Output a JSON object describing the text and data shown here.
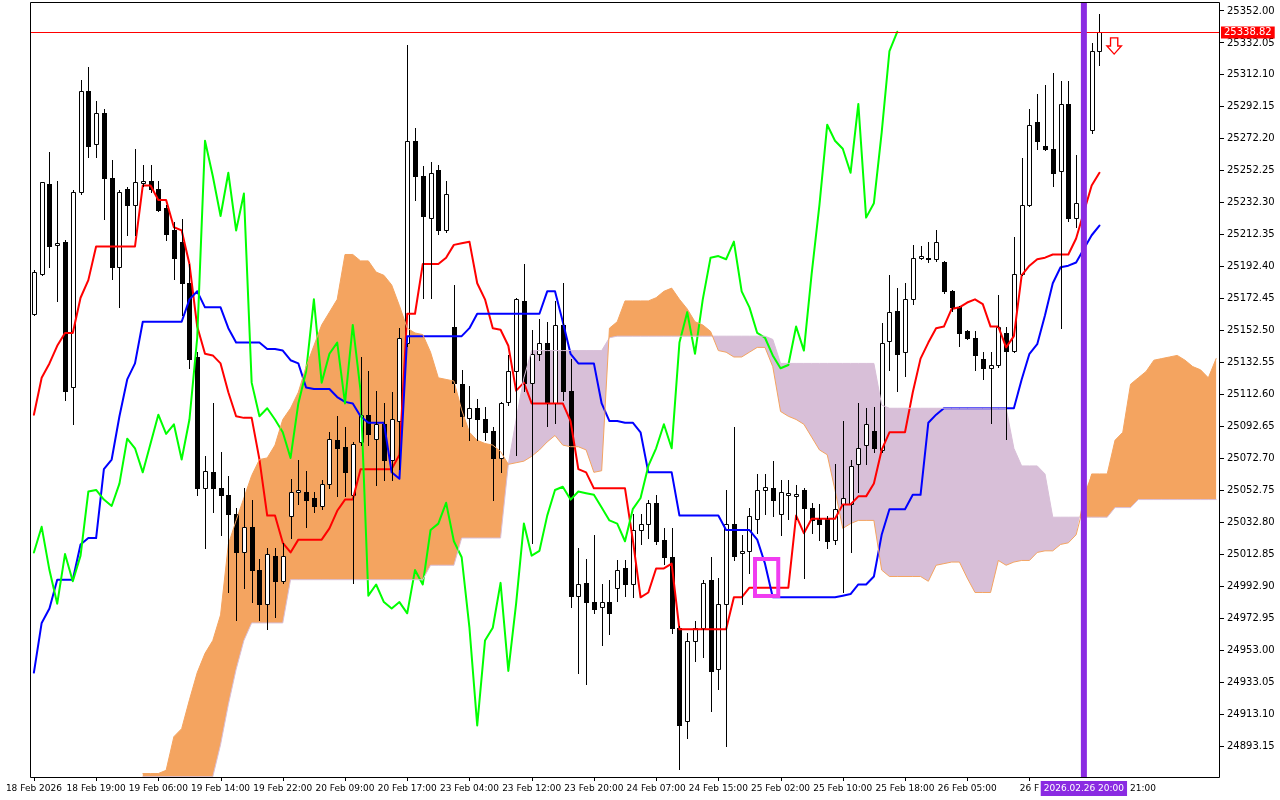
{
  "chart_data": {
    "type": "candlestick",
    "categories": [
      "18 Feb 2026",
      null,
      null,
      null,
      null,
      null,
      null,
      null,
      "18 Feb 19:00",
      null,
      null,
      null,
      null,
      null,
      null,
      null,
      "19 Feb 06:00",
      null,
      null,
      null,
      null,
      null,
      null,
      null,
      "19 Feb 14:00",
      null,
      null,
      null,
      null,
      null,
      null,
      null,
      "19 Feb 22:00",
      null,
      null,
      null,
      null,
      null,
      null,
      null,
      "20 Feb 09:00",
      null,
      null,
      null,
      null,
      null,
      null,
      null,
      "20 Feb 17:00",
      null,
      null,
      null,
      null,
      null,
      null,
      null,
      "23 Feb 04:00",
      null,
      null,
      null,
      null,
      null,
      null,
      null,
      "23 Feb 12:00",
      null,
      null,
      null,
      null,
      null,
      null,
      null,
      "23 Feb 20:00",
      null,
      null,
      null,
      null,
      null,
      null,
      null,
      "24 Feb 07:00",
      null,
      null,
      null,
      null,
      null,
      null,
      null,
      "24 Feb 15:00",
      null,
      null,
      null,
      null,
      null,
      null,
      null,
      "25 Feb 02:00",
      null,
      null,
      null,
      null,
      null,
      null,
      null,
      "25 Feb 10:00",
      null,
      null,
      null,
      null,
      null,
      null,
      null,
      "25 Feb 18:00",
      null,
      null,
      null,
      null,
      null,
      null,
      null,
      "26 Feb 05:00",
      null,
      null,
      null,
      null,
      null,
      null,
      null,
      "26 F",
      null,
      null,
      null,
      null,
      null,
      null,
      "2026.02.26 20:00",
      null,
      null,
      null,
      null,
      null,
      null,
      null,
      null,
      null,
      null,
      null,
      null,
      null,
      null,
      null,
      null,
      null
    ],
    "ohlc": [
      [
        25163,
        25190,
        25162,
        25189
      ],
      [
        25188,
        25245,
        25187,
        25245
      ],
      [
        25244,
        25264,
        25192,
        25205
      ],
      [
        25206,
        25246,
        25171,
        25207
      ],
      [
        25208,
        25209,
        25109,
        25115
      ],
      [
        25117,
        25240,
        25094,
        25239
      ],
      [
        25239,
        25309,
        25238,
        25302
      ],
      [
        25302,
        25317,
        25261,
        25268
      ],
      [
        25269,
        25296,
        25261,
        25288
      ],
      [
        25288,
        25291,
        25222,
        25248
      ],
      [
        25248,
        25259,
        25185,
        25192
      ],
      [
        25192,
        25240,
        25167,
        25239
      ],
      [
        25241,
        25242,
        25212,
        25231
      ],
      [
        25231,
        25266,
        25212,
        25245
      ],
      [
        25245,
        25256,
        25243,
        25246
      ],
      [
        25246,
        25256,
        25239,
        25241
      ],
      [
        25241,
        25246,
        25227,
        25228
      ],
      [
        25229,
        25231,
        25209,
        25213
      ],
      [
        25215,
        25220,
        25185,
        25198
      ],
      [
        25208,
        25222,
        25162,
        25182
      ],
      [
        25182,
        25194,
        25129,
        25135
      ],
      [
        25136,
        25139,
        25050,
        25054
      ],
      [
        25054,
        25074,
        25017,
        25065
      ],
      [
        25064,
        25107,
        25039,
        25054
      ],
      [
        25054,
        25077,
        25025,
        25050
      ],
      [
        25050,
        25062,
        24989,
        25038
      ],
      [
        25038,
        25042,
        24972,
        25014
      ],
      [
        25014,
        25054,
        24992,
        25030
      ],
      [
        25030,
        25047,
        24983,
        25003
      ],
      [
        25003,
        25010,
        24972,
        24982
      ],
      [
        24982,
        25017,
        24966,
        25013
      ],
      [
        25012,
        25017,
        24974,
        24996
      ],
      [
        24996,
        25020,
        24995,
        25012
      ],
      [
        25037,
        25060,
        25023,
        25052
      ],
      [
        25052,
        25072,
        25044,
        25053
      ],
      [
        25052,
        25065,
        25030,
        25047
      ],
      [
        25048,
        25052,
        25039,
        25043
      ],
      [
        25043,
        25059,
        25041,
        25057
      ],
      [
        25057,
        25089,
        25054,
        25085
      ],
      [
        25084,
        25099,
        25049,
        25079
      ],
      [
        25080,
        25092,
        25049,
        25064
      ],
      [
        25050,
        25083,
        24995,
        25082
      ],
      [
        25083,
        25136,
        25081,
        25100
      ],
      [
        25100,
        25127,
        25081,
        25088
      ],
      [
        25085,
        25115,
        25056,
        25094
      ],
      [
        25094,
        25107,
        25059,
        25072
      ],
      [
        25072,
        25114,
        25059,
        25097
      ],
      [
        25096,
        25154,
        25066,
        25148
      ],
      [
        25145,
        25331,
        25143,
        25271
      ],
      [
        25271,
        25279,
        25234,
        25249
      ],
      [
        25249,
        25255,
        25173,
        25224
      ],
      [
        25223,
        25258,
        25173,
        25251
      ],
      [
        25253,
        25256,
        25213,
        25215
      ],
      [
        25215,
        25246,
        25214,
        25238
      ],
      [
        25155,
        25181,
        25114,
        25120
      ],
      [
        25119,
        25128,
        25093,
        25099
      ],
      [
        25098,
        25118,
        25084,
        25104
      ],
      [
        25104,
        25110,
        25084,
        25097
      ],
      [
        25097,
        25105,
        25084,
        25089
      ],
      [
        25090,
        25092,
        25047,
        25073
      ],
      [
        25073,
        25108,
        25064,
        25107
      ],
      [
        25108,
        25137,
        25106,
        25127
      ],
      [
        25127,
        25173,
        25075,
        25172
      ],
      [
        25171,
        25194,
        25115,
        25120
      ],
      [
        25120,
        25153,
        25020,
        25138
      ],
      [
        25138,
        25160,
        25134,
        25145
      ],
      [
        25145,
        25158,
        25093,
        25107
      ],
      [
        25107,
        25171,
        25095,
        25156
      ],
      [
        25156,
        25182,
        25109,
        25115
      ],
      [
        25115,
        25135,
        24980,
        24987
      ],
      [
        24987,
        25017,
        24939,
        24994
      ],
      [
        24995,
        25010,
        24932,
        24983
      ],
      [
        24983,
        25025,
        24976,
        24979
      ],
      [
        24980,
        24994,
        24956,
        24983
      ],
      [
        24983,
        24997,
        24963,
        24976
      ],
      [
        24992,
        25009,
        24984,
        25003
      ],
      [
        25004,
        25009,
        24987,
        24994
      ],
      [
        24994,
        25038,
        24986,
        25028
      ],
      [
        25028,
        25038,
        25019,
        25032
      ],
      [
        25032,
        25047,
        25023,
        25045
      ],
      [
        25045,
        25050,
        25019,
        25021
      ],
      [
        25022,
        25029,
        25007,
        25011
      ],
      [
        25011,
        25029,
        24964,
        24967
      ],
      [
        24967,
        24968,
        24879,
        24906
      ],
      [
        24909,
        24964,
        24898,
        24959
      ],
      [
        24959,
        24971,
        24946,
        24967
      ],
      [
        24967,
        24997,
        24949,
        24995
      ],
      [
        24997,
        25011,
        24915,
        24940
      ],
      [
        24941,
        24998,
        24929,
        24982
      ],
      [
        24982,
        25053,
        24893,
        25032
      ],
      [
        25032,
        25092,
        25009,
        25012
      ],
      [
        25014,
        25025,
        24982,
        25015
      ],
      [
        25015,
        25042,
        25001,
        25037
      ],
      [
        25035,
        25063,
        25026,
        25053
      ],
      [
        25053,
        25063,
        25038,
        25055
      ],
      [
        25054,
        25071,
        25037,
        25047
      ],
      [
        25038,
        25059,
        25025,
        25052
      ],
      [
        25050,
        25059,
        25035,
        25051
      ],
      [
        25050,
        25056,
        25035,
        25050
      ],
      [
        25053,
        25054,
        24998,
        25042
      ],
      [
        25042,
        25045,
        25026,
        25034
      ],
      [
        25035,
        25044,
        25022,
        25032
      ],
      [
        25035,
        25037,
        25017,
        25021
      ],
      [
        25022,
        25069,
        25019,
        25041
      ],
      [
        25044,
        25096,
        24989,
        25048
      ],
      [
        25044,
        25072,
        25014,
        25068
      ],
      [
        25069,
        25107,
        25052,
        25079
      ],
      [
        25081,
        25104,
        25069,
        25094
      ],
      [
        25090,
        25105,
        25077,
        25079
      ],
      [
        25078,
        25157,
        25077,
        25145
      ],
      [
        25146,
        25187,
        25128,
        25164
      ],
      [
        25165,
        25179,
        25115,
        25138
      ],
      [
        25139,
        25182,
        25124,
        25172
      ],
      [
        25172,
        25206,
        25169,
        25198
      ],
      [
        25198,
        25205,
        25197,
        25199
      ],
      [
        25198,
        25208,
        25195,
        25197
      ],
      [
        25197,
        25215,
        25196,
        25208
      ],
      [
        25195,
        25196,
        25176,
        25177
      ],
      [
        25177,
        25178,
        25165,
        25167
      ],
      [
        25167,
        25168,
        25143,
        25151
      ],
      [
        25152,
        25153,
        25147,
        25148
      ],
      [
        25148,
        25152,
        25128,
        25137
      ],
      [
        25135,
        25139,
        25122,
        25129
      ],
      [
        25129,
        25139,
        25095,
        25131
      ],
      [
        25131,
        25175,
        25130,
        25155
      ],
      [
        25151,
        25155,
        25085,
        25140
      ],
      [
        25140,
        25211,
        25139,
        25188
      ],
      [
        25188,
        25260,
        25187,
        25231
      ],
      [
        25231,
        25291,
        25230,
        25281
      ],
      [
        25283,
        25300,
        25266,
        25271
      ],
      [
        25268,
        25306,
        25265,
        25266
      ],
      [
        25266,
        25313,
        25243,
        25251
      ],
      [
        25252,
        25308,
        25154,
        25294
      ],
      [
        25294,
        25308,
        25221,
        25223
      ],
      [
        25223,
        25262,
        25217,
        25232
      ],
      null,
      [
        25278,
        25332,
        25276,
        25327
      ],
      [
        25327,
        25350,
        25318,
        25338.82
      ],
      null,
      null,
      null,
      null,
      null,
      null,
      null,
      null,
      null,
      null,
      null,
      null,
      null,
      null,
      null
    ],
    "series": [
      {
        "type": "line",
        "color": "#f4a460",
        "values": [
          null,
          null,
          null,
          null,
          null,
          null,
          null,
          null,
          null,
          null,
          null,
          null,
          null,
          null,
          24876,
          24876,
          24876,
          24878,
          24899,
          24904,
          24922,
          24939,
          24951,
          24959,
          24975,
          25019,
          25034,
          25048,
          25062,
          25072,
          25073,
          25081,
          25097,
          25104,
          25114,
          25130,
          25143,
          25156,
          25164,
          25172,
          25200,
          25200,
          25196,
          25196,
          25189,
          25187,
          25181,
          25168,
          25154,
          25151,
          25150,
          25139,
          25123,
          25122,
          25121,
          25103,
          25089,
          25084,
          25082,
          25081,
          25077,
          25069,
          25070,
          25071,
          25074,
          25078,
          25083,
          25087,
          25081,
          25080,
          25080,
          25078,
          25064,
          25065,
          25154,
          25158,
          25171,
          25171,
          25171,
          25171,
          25173,
          25177,
          25179,
          25172,
          25166,
          25158,
          25156,
          25152,
          25140,
          25139,
          25136,
          25136,
          25139,
          25142,
          25142,
          25130,
          25102,
          25099,
          25097,
          25094,
          25086,
          25078,
          25075,
          25053,
          25029,
          25032,
          25034,
          25034,
          25034,
          25003,
          24999,
          24999,
          24999,
          24999,
          24999,
          24996,
          25006,
          25007,
          25008,
          25008,
          24998,
          24989,
          24989,
          24989,
          25009,
          25006,
          25008,
          25009,
          25009,
          25014,
          25015,
          25015,
          25019,
          25020,
          25025,
          null,
          25063,
          25063,
          25063,
          25084,
          25089,
          25119,
          25123,
          25127,
          25134,
          25135,
          25136,
          25137,
          25134,
          25130,
          25128,
          25123,
          25135
        ],
        "lower": [
          null,
          null,
          null,
          null,
          null,
          null,
          null,
          null,
          null,
          null,
          null,
          null,
          null,
          null,
          24874,
          24874,
          24874,
          24874,
          24874,
          24874,
          24874,
          24874,
          24874,
          24874,
          24894,
          24919,
          24941,
          24959,
          24970,
          24970,
          24970,
          24970,
          24970,
          24997,
          24997,
          24997,
          24997,
          24997,
          24997,
          24997,
          24997,
          24997,
          24997,
          24997,
          24997,
          24997,
          24997,
          24997,
          24997,
          24997,
          24997,
          25006,
          25006,
          25006,
          25006,
          25023,
          25023,
          25023,
          25023,
          25023,
          25023,
          25069,
          null,
          null,
          null,
          null,
          null,
          null,
          null,
          null,
          null,
          null,
          null,
          null,
          25148,
          25149,
          25149,
          25149,
          25149,
          25149,
          25149,
          25149,
          25149,
          25149,
          25149,
          25149,
          25149,
          25149,
          null,
          null,
          null,
          null,
          null,
          null,
          null,
          null,
          null,
          null,
          null,
          null,
          null,
          null,
          null,
          null,
          null,
          null,
          null,
          null,
          null,
          null,
          null,
          null,
          null,
          null,
          null,
          null,
          null,
          null,
          null,
          null,
          null,
          null,
          null,
          null,
          null,
          null,
          null,
          null,
          null,
          null,
          null,
          null,
          null,
          null,
          null,
          25036,
          25036,
          25036,
          25036,
          25042,
          25042,
          25042,
          25047,
          25047,
          25047,
          25047,
          25047,
          25047,
          25047,
          25047,
          25047,
          25047,
          25047
        ],
        "upper": [
          null,
          null,
          null,
          null,
          null,
          null,
          null,
          null,
          null,
          null,
          null,
          null,
          null,
          null,
          24876,
          24876,
          24876,
          24878,
          24899,
          24904,
          24922,
          24939,
          24951,
          24959,
          24975,
          25019,
          25034,
          25048,
          25062,
          25072,
          25073,
          25081,
          25097,
          25104,
          25114,
          25130,
          25143,
          25156,
          25164,
          25172,
          25200,
          25200,
          25196,
          25196,
          25189,
          25187,
          25181,
          25168,
          25154,
          25151,
          25150,
          25139,
          25123,
          25122,
          25121,
          25103,
          25089,
          25084,
          25082,
          25081,
          25077,
          25069,
          null,
          null,
          null,
          null,
          null,
          null,
          null,
          null,
          null,
          null,
          null,
          null,
          25154,
          25158,
          25171,
          25171,
          25171,
          25171,
          25173,
          25177,
          25179,
          25172,
          25166,
          25158,
          25156,
          25152,
          null,
          null,
          null,
          null,
          null,
          null,
          null,
          null,
          null,
          null,
          null,
          null,
          null,
          null,
          null,
          null,
          null,
          null,
          null,
          null,
          null,
          null,
          null,
          null,
          null,
          null,
          null,
          null,
          null,
          null,
          null,
          null,
          null,
          null,
          null,
          null,
          null,
          null,
          null,
          null,
          null,
          null,
          null,
          null,
          null,
          null,
          null,
          25050,
          25063,
          25063,
          25063,
          25084,
          25089,
          25119,
          25123,
          25127,
          25134,
          25135,
          25136,
          25137,
          25134,
          25130,
          25128,
          25123,
          25135
        ]
      },
      {
        "type": "line",
        "color": "#d8bfd8",
        "values": [
          null,
          null,
          null,
          null,
          null,
          null,
          null,
          null,
          null,
          null,
          null,
          null,
          null,
          null,
          24874,
          24874,
          24874,
          24874,
          24874,
          24874,
          24874,
          24874,
          24874,
          24874,
          24894,
          24919,
          24941,
          24959,
          24970,
          24970,
          24970,
          24970,
          24970,
          24997,
          24997,
          24997,
          24997,
          24997,
          24997,
          24997,
          24997,
          24997,
          24997,
          24997,
          24997,
          24997,
          24997,
          24997,
          24997,
          24997,
          24997,
          25006,
          25006,
          25006,
          25006,
          25023,
          25023,
          25023,
          25023,
          25023,
          25023,
          25069,
          25097,
          25123,
          25140,
          25140,
          25140,
          25140,
          25140,
          25140,
          25140,
          25140,
          25140,
          25140,
          25148,
          25149,
          25149,
          25149,
          25149,
          25149,
          25149,
          25149,
          25149,
          25149,
          25149,
          25149,
          25149,
          25149,
          25149,
          25149,
          25149,
          25149,
          25149,
          25149,
          25149,
          25147,
          25132,
          25132,
          25132,
          25132,
          25132,
          25132,
          25132,
          25132,
          25132,
          25132,
          25132,
          25132,
          25132,
          25106,
          25104,
          25104,
          25104,
          25104,
          25104,
          25104,
          25104,
          25104,
          25104,
          25104,
          25104,
          25104,
          25104,
          25104,
          25104,
          25104,
          25079,
          25068,
          25068,
          25068,
          25063,
          25036,
          25036,
          25036,
          25036,
          null,
          25036,
          25036,
          25036,
          25042,
          25042,
          25042,
          25047,
          25047,
          25047,
          25047,
          25047,
          25047,
          25047,
          25047,
          25047,
          25047,
          25047
        ],
        "lower": [
          null,
          null,
          null,
          null,
          null,
          null,
          null,
          null,
          null,
          null,
          null,
          null,
          null,
          null,
          null,
          null,
          null,
          null,
          null,
          null,
          null,
          null,
          null,
          null,
          null,
          null,
          null,
          null,
          null,
          null,
          null,
          null,
          null,
          null,
          null,
          null,
          null,
          null,
          null,
          null,
          null,
          null,
          null,
          null,
          null,
          null,
          null,
          null,
          null,
          null,
          null,
          null,
          null,
          null,
          null,
          null,
          null,
          null,
          null,
          null,
          null,
          25069,
          25070,
          25071,
          25074,
          25078,
          25083,
          25087,
          25081,
          25080,
          25080,
          25078,
          25064,
          25065,
          null,
          null,
          null,
          null,
          null,
          null,
          null,
          null,
          null,
          null,
          null,
          null,
          null,
          null,
          25140,
          25139,
          25136,
          25136,
          25139,
          25142,
          25142,
          25130,
          25102,
          25099,
          25097,
          25094,
          25086,
          25078,
          25075,
          25053,
          25029,
          25032,
          25034,
          25034,
          25034,
          25003,
          24999,
          24999,
          24999,
          24999,
          24999,
          24996,
          25006,
          25007,
          25008,
          25008,
          24998,
          24989,
          24989,
          24989,
          25009,
          25006,
          25008,
          25009,
          25009,
          25014,
          25015,
          25015,
          25019,
          25020,
          25025,
          null,
          null,
          null,
          null,
          null,
          null,
          null,
          null,
          null,
          null,
          null,
          null,
          null,
          null,
          null,
          null,
          null,
          null
        ],
        "upper": [
          null,
          null,
          null,
          null,
          null,
          null,
          null,
          null,
          null,
          null,
          null,
          null,
          null,
          null,
          null,
          null,
          null,
          null,
          null,
          null,
          null,
          null,
          null,
          null,
          null,
          null,
          null,
          null,
          null,
          null,
          null,
          null,
          null,
          null,
          null,
          null,
          null,
          null,
          null,
          null,
          null,
          null,
          null,
          null,
          null,
          null,
          null,
          null,
          null,
          null,
          null,
          null,
          null,
          null,
          null,
          null,
          null,
          null,
          null,
          null,
          null,
          25069,
          25097,
          25123,
          25140,
          25140,
          25140,
          25140,
          25140,
          25140,
          25140,
          25140,
          25140,
          25140,
          null,
          null,
          null,
          null,
          null,
          null,
          null,
          null,
          null,
          null,
          null,
          null,
          null,
          null,
          25149,
          25149,
          25149,
          25149,
          25149,
          25149,
          25149,
          25147,
          25132,
          25132,
          25132,
          25132,
          25132,
          25132,
          25132,
          25132,
          25132,
          25132,
          25132,
          25132,
          25132,
          25106,
          25104,
          25104,
          25104,
          25104,
          25104,
          25104,
          25104,
          25104,
          25104,
          25104,
          25104,
          25104,
          25104,
          25104,
          25104,
          25104,
          25079,
          25068,
          25068,
          25068,
          25063,
          25036,
          25036,
          25036,
          25036,
          null,
          null,
          null,
          null,
          null,
          null,
          null,
          null,
          null,
          null,
          null,
          null,
          null,
          null,
          null,
          null,
          null,
          null
        ]
      },
      {
        "type": "line",
        "color": "#00ff00",
        "values": [
          25014,
          25030,
          25003,
          24982,
          25013,
          24996,
          25012,
          25052,
          25053,
          25047,
          25043,
          25057,
          25085,
          25079,
          25064,
          25082,
          25100,
          25088,
          25094,
          25072,
          25097,
          25148,
          25271,
          25249,
          25224,
          25251,
          25215,
          25238,
          25120,
          25099,
          25104,
          25097,
          25089,
          25073,
          25107,
          25127,
          25172,
          25120,
          25138,
          25145,
          25107,
          25156,
          25115,
          24987,
          24994,
          24983,
          24979,
          24983,
          24976,
          25003,
          24994,
          25028,
          25032,
          25045,
          25021,
          25011,
          24967,
          24906,
          24959,
          24967,
          24995,
          24940,
          24982,
          25032,
          25012,
          25015,
          25037,
          25053,
          25055,
          25047,
          25052,
          25051,
          25050,
          25042,
          25034,
          25032,
          25021,
          25041,
          25048,
          25068,
          25079,
          25094,
          25079,
          25145,
          25164,
          25138,
          25172,
          25198,
          25199,
          25197,
          25208,
          25177,
          25167,
          25151,
          25148,
          25137,
          25129,
          25131,
          25155,
          25140,
          25188,
          25231,
          25281,
          25271,
          25266,
          25251,
          25294,
          25223,
          25232,
          25276,
          25327,
          25339,
          null,
          null,
          null,
          null,
          null,
          null,
          null,
          null,
          null,
          null,
          null,
          null,
          null,
          null,
          null,
          null,
          null,
          null,
          null,
          null,
          null,
          null,
          null,
          null,
          null,
          null,
          null,
          null,
          null,
          null,
          null,
          null,
          null,
          null,
          null,
          null,
          null,
          null,
          null,
          null,
          null
        ]
      },
      {
        "type": "line",
        "color": "#0000ff",
        "values": [
          24939,
          24970,
          24979,
          24997,
          24997,
          24997,
          25019,
          25023,
          25023,
          25066,
          25072,
          25099,
          25122,
          25132,
          25158,
          25158,
          25158,
          25158,
          25158,
          25158,
          25172,
          25177,
          25167,
          25167,
          25167,
          25154,
          25145,
          25145,
          25145,
          25145,
          25141,
          25141,
          25140,
          25134,
          25132,
          25117,
          25116,
          25116,
          25116,
          25111,
          25108,
          25107,
          25099,
          25095,
          25095,
          25095,
          25064,
          25060,
          25149,
          25149,
          25149,
          25149,
          25149,
          25149,
          25149,
          25149,
          25154,
          25163,
          25163,
          25163,
          25163,
          25163,
          25163,
          25163,
          25163,
          25163,
          25177,
          25177,
          25158,
          25138,
          25132,
          25132,
          25132,
          25107,
          25096,
          25096,
          25095,
          25095,
          25089,
          25064,
          25064,
          25064,
          25064,
          25037,
          25037,
          25037,
          25037,
          25037,
          25037,
          25028,
          25028,
          25028,
          25028,
          25022,
          25007,
          24986,
          24986,
          24986,
          24986,
          24986,
          24986,
          24986,
          24986,
          24986,
          24987,
          24988,
          24994,
          24994,
          24999,
          25025,
          25041,
          25041,
          25041,
          25050,
          25050,
          25095,
          25100,
          25104,
          25104,
          25104,
          25104,
          25104,
          25104,
          25104,
          25104,
          25104,
          25104,
          25122,
          25138,
          25144,
          25162,
          25182,
          25192,
          25193,
          25195,
          null,
          25212,
          25218,
          null,
          null,
          null,
          null,
          null,
          null,
          null,
          null,
          null,
          null,
          null,
          null,
          null,
          null,
          null
        ]
      },
      {
        "type": "line",
        "color": "#ff0000",
        "values": [
          25100,
          25123,
          25132,
          25143,
          25151,
          25151,
          25173,
          25184,
          25205,
          25205,
          25205,
          25205,
          25205,
          25205,
          25243,
          25243,
          25234,
          25234,
          25217,
          25215,
          25194,
          25155,
          25138,
          25137,
          25132,
          25114,
          25099,
          25098,
          25098,
          25072,
          25037,
          25037,
          25020,
          25014,
          25022,
          25022,
          25022,
          25022,
          25029,
          25040,
          25047,
          25047,
          25066,
          25066,
          25066,
          25066,
          25066,
          25075,
          25163,
          25163,
          25194,
          25194,
          25194,
          25198,
          25206,
          25207,
          25208,
          25182,
          25172,
          25154,
          25153,
          25143,
          25115,
          25120,
          25107,
          25107,
          25107,
          25107,
          25107,
          25096,
          25066,
          25064,
          25054,
          25054,
          25054,
          25054,
          25054,
          25022,
          24986,
          24989,
          25004,
          25004,
          25007,
          24966,
          24966,
          24966,
          24966,
          24966,
          24966,
          24966,
          24986,
          24986,
          24992,
          24992,
          24992,
          24992,
          24992,
          24992,
          25037,
          25026,
          25035,
          25035,
          25035,
          25035,
          25044,
          25044,
          25049,
          25049,
          25057,
          25078,
          25089,
          25089,
          25089,
          25114,
          25135,
          25145,
          25154,
          25155,
          25166,
          25167,
          25170,
          25172,
          25169,
          25155,
          25155,
          25142,
          25149,
          25187,
          25193,
          25197,
          25198,
          25200,
          25200,
          25200,
          25210,
          null,
          25243,
          25251,
          null,
          null,
          null,
          null,
          null,
          null,
          null,
          null,
          null,
          null,
          null,
          null,
          null,
          null,
          null
        ]
      }
    ],
    "ylim": [
      24873.2,
      25357.6
    ],
    "yticks": [
      {
        "value": 25352,
        "label": "25352.00"
      },
      {
        "value": 25332.05,
        "label": "25332.05"
      },
      {
        "value": 25312.1,
        "label": "25312.10"
      },
      {
        "value": 25292.15,
        "label": "25292.15"
      },
      {
        "value": 25272.2,
        "label": "25272.20"
      },
      {
        "value": 25252.25,
        "label": "25252.25"
      },
      {
        "value": 25232.3,
        "label": "25232.30"
      },
      {
        "value": 25212.35,
        "label": "25212.35"
      },
      {
        "value": 25192.4,
        "label": "25192.40"
      },
      {
        "value": 25172.45,
        "label": "25172.45"
      },
      {
        "value": 25152.5,
        "label": "25152.50"
      },
      {
        "value": 25132.55,
        "label": "25132.55"
      },
      {
        "value": 25112.6,
        "label": "25112.60"
      },
      {
        "value": 25092.65,
        "label": "25092.65"
      },
      {
        "value": 25072.7,
        "label": "25072.70"
      },
      {
        "value": 25052.75,
        "label": "25052.75"
      },
      {
        "value": 25032.8,
        "label": "25032.80"
      },
      {
        "value": 25012.85,
        "label": "25012.85"
      },
      {
        "value": 24992.9,
        "label": "24992.90"
      },
      {
        "value": 24972.95,
        "label": "24972.95"
      },
      {
        "value": 24953,
        "label": "24953.00"
      },
      {
        "value": 24933.05,
        "label": "24933.05"
      },
      {
        "value": 24913.1,
        "label": "24913.10"
      },
      {
        "value": 24893.15,
        "label": "24893.15"
      }
    ],
    "ref_lines": [
      {
        "axis": "y",
        "value": 25338.82,
        "label": "25338.82",
        "color": "#ff0000"
      },
      {
        "axis": "x",
        "value": "2026.02.26 20:00",
        "color": "#8a2be2"
      }
    ],
    "annotations": [
      "21:00"
    ]
  }
}
